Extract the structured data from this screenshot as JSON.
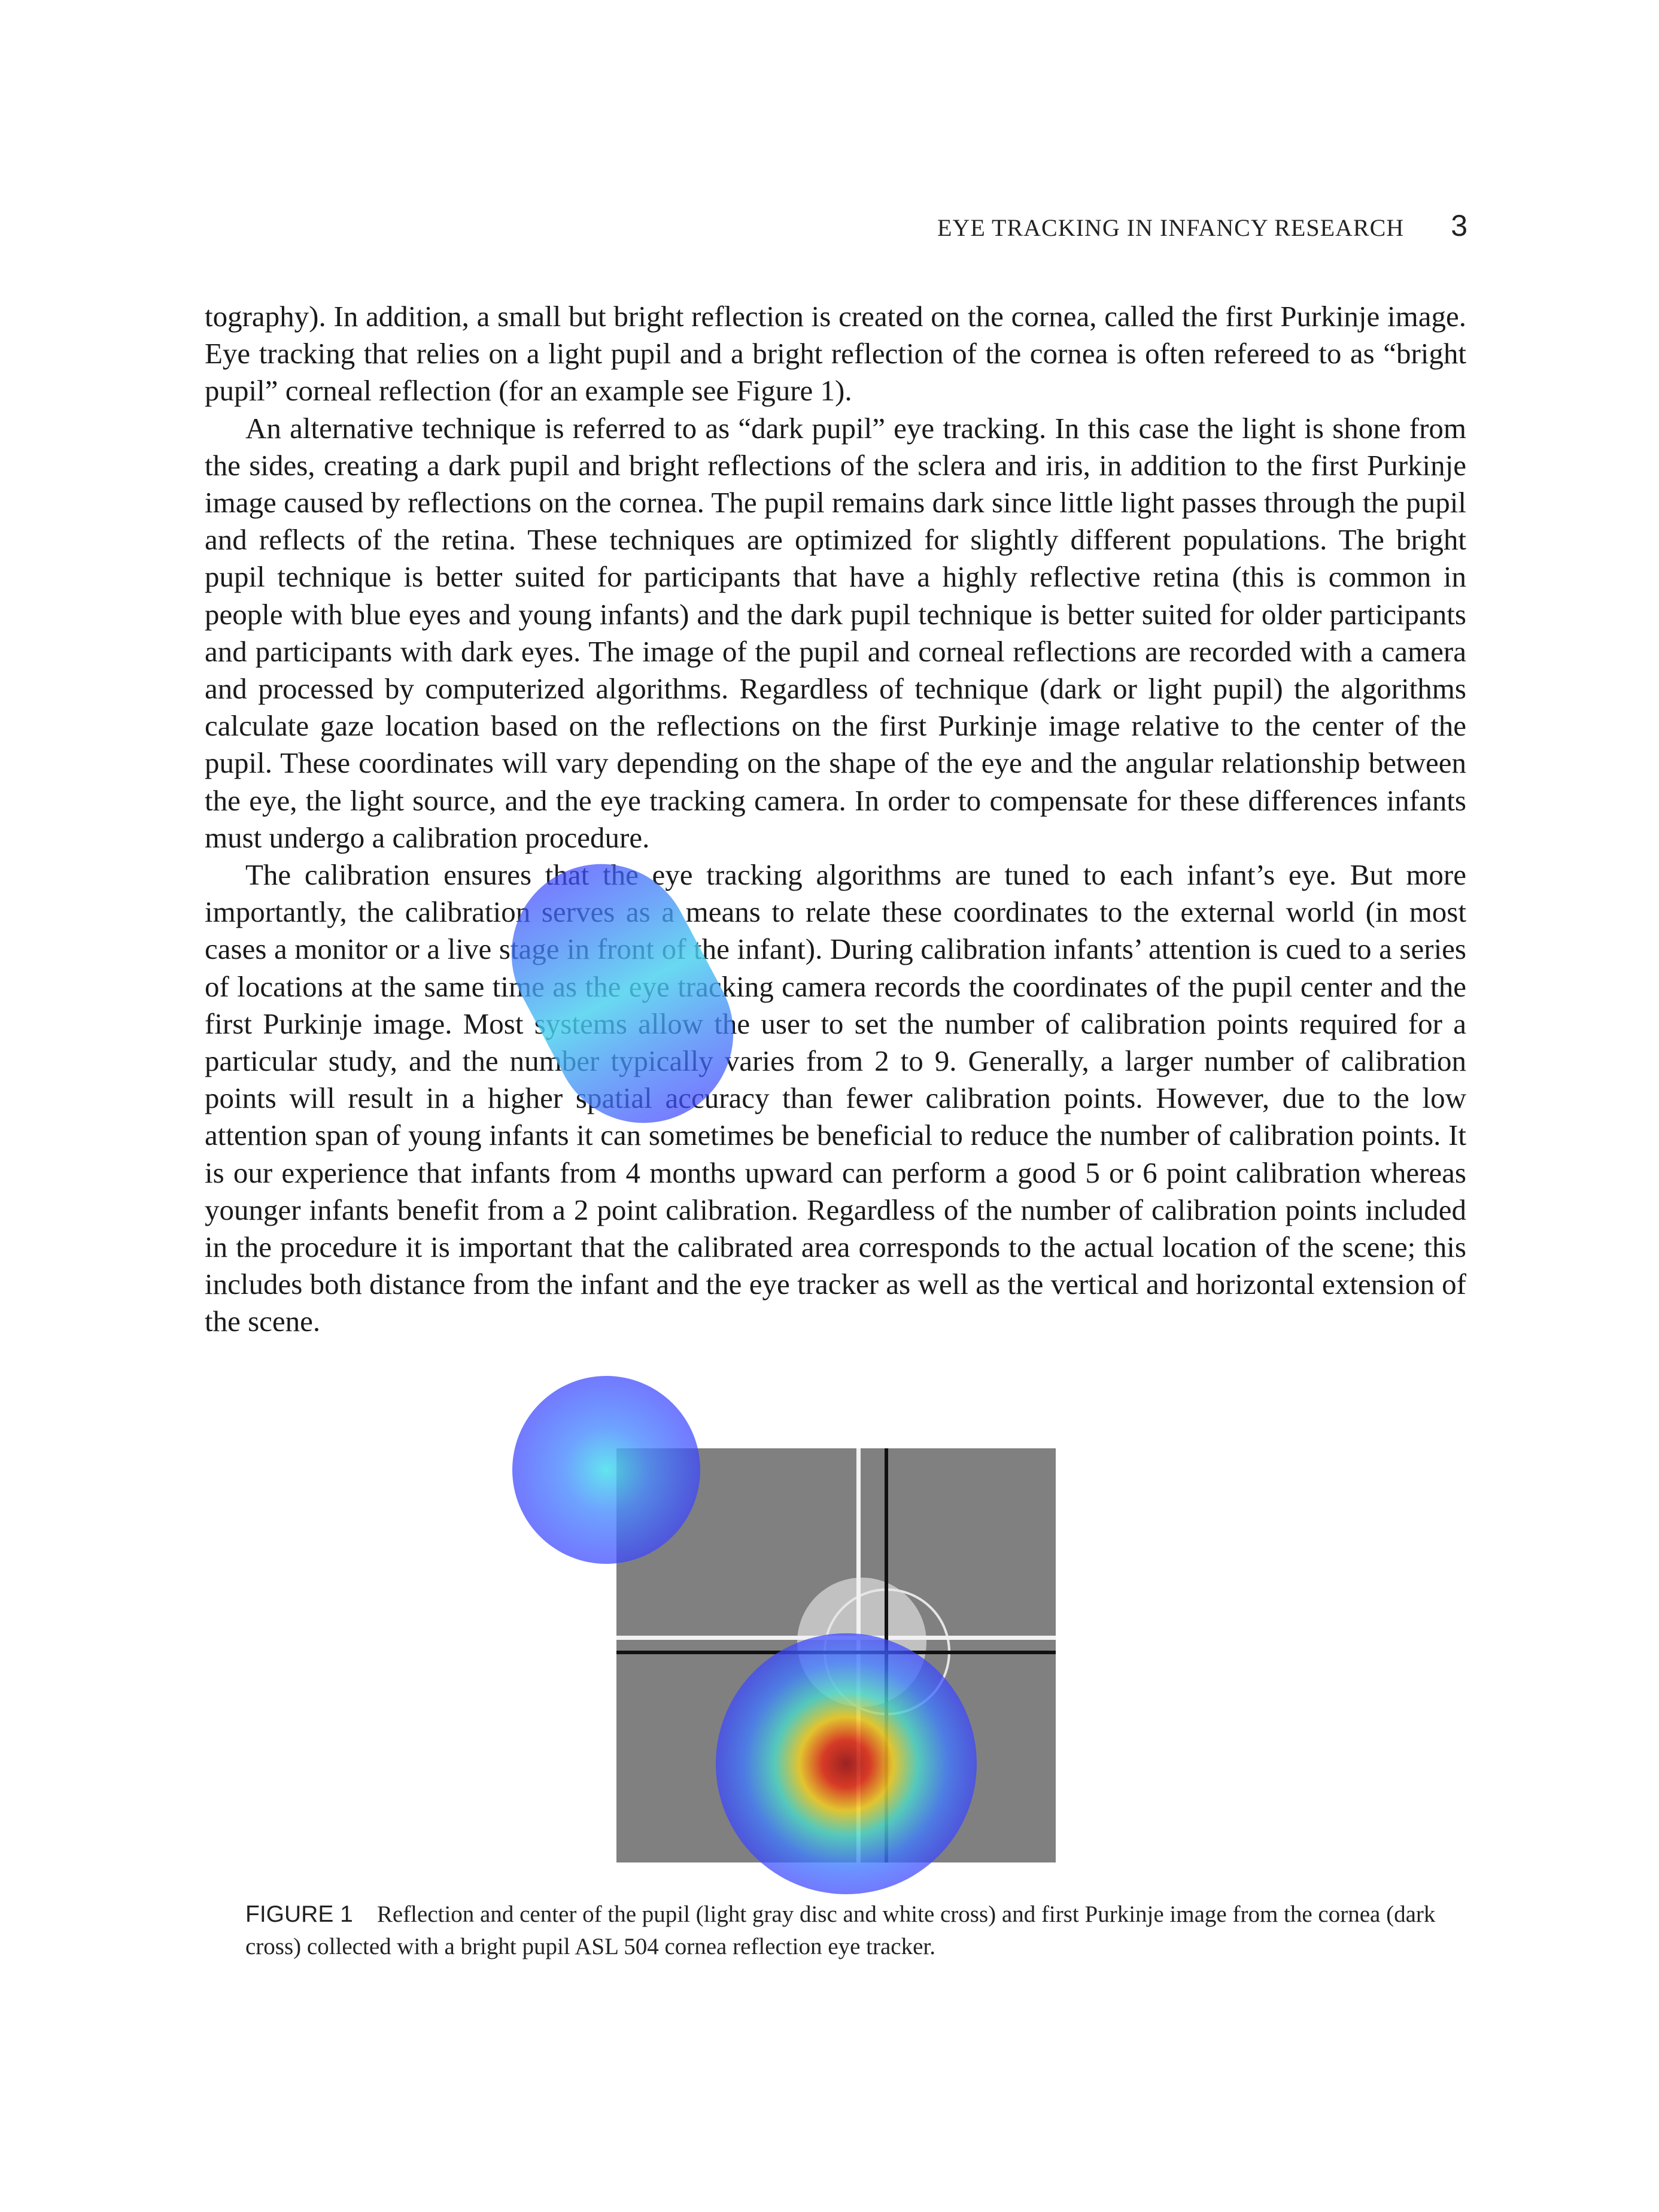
{
  "header": {
    "running_title": "EYE TRACKING IN INFANCY RESEARCH",
    "page_number": "3"
  },
  "body": {
    "paragraphs": [
      "tography). In addition, a small but bright reflection is created on the cornea, called the first Purkinje image. Eye tracking that relies on a light pupil and a bright reflection of the cornea is often refereed to as “bright pupil” corneal reflection (for an example see Figure 1).",
      "An alternative technique is referred to as “dark pupil” eye tracking. In this case the light is shone from the sides, creating a dark pupil and bright reflections of the sclera and iris, in addition to the first Purkinje image caused by reflections on the cornea. The pupil remains dark since little light passes through the pupil and reflects of the retina. These techniques are optimized for slightly different populations. The bright pupil technique is better suited for participants that have a highly reflective retina (this is common in people with blue eyes and young infants) and the dark pupil technique is better suited for older participants and participants with dark eyes. The image of the pupil and corneal reflections are recorded with a camera and processed by computerized algorithms. Regardless of technique (dark or light pupil) the algorithms calculate gaze location based on the reflections on the first Purkinje image relative to the center of the pupil. These coordinates will vary depending on the shape of the eye and the angular relationship between the eye, the light source, and the eye tracking camera. In order to compensate for these differences infants must undergo a calibration procedure.",
      "The calibration ensures that the eye tracking algorithms are tuned to each infant’s eye. But more importantly, the calibration serves as a means to relate these coordinates to the external world (in most cases a monitor or a live stage in front of the infant). During calibration infants’ attention is cued to a series of locations at the same time as the eye tracking camera records the coordinates of the pupil center and the first Purkinje image. Most systems allow the user to set the number of calibration points required for a particular study, and the number typically varies from 2 to 9. Generally, a larger number of calibration points will result in a higher spatial accuracy than fewer calibration points. However, due to the low attention span of young infants it can sometimes be beneficial to reduce the number of calibration points. It is our experience that infants from 4 months upward can perform a good 5 or 6 point calibration whereas younger infants benefit from a 2 point calibration. Regardless of the number of calibration points included in the procedure it is important that the calibrated area corresponds to the actual location of the scene; this includes both distance from the infant and the eye tracker as well as the vertical and horizontal extension of the scene."
    ]
  },
  "figure": {
    "label": "FIGURE 1",
    "caption": "Reflection and center of the pupil (light gray disc and white cross) and first Purkinje image from the cornea (dark cross) collected with a bright pupil ASL 504 cornea reflection eye tracker."
  },
  "colors": {
    "figure_background": "#808080",
    "pupil_disc": "#c8c8c8",
    "white_cross": "#f2f2f2",
    "dark_cross": "#111111",
    "heatmap_low": "#3c46ff",
    "heatmap_mid": "#47d9f0",
    "heatmap_high": "#b21a1a"
  }
}
